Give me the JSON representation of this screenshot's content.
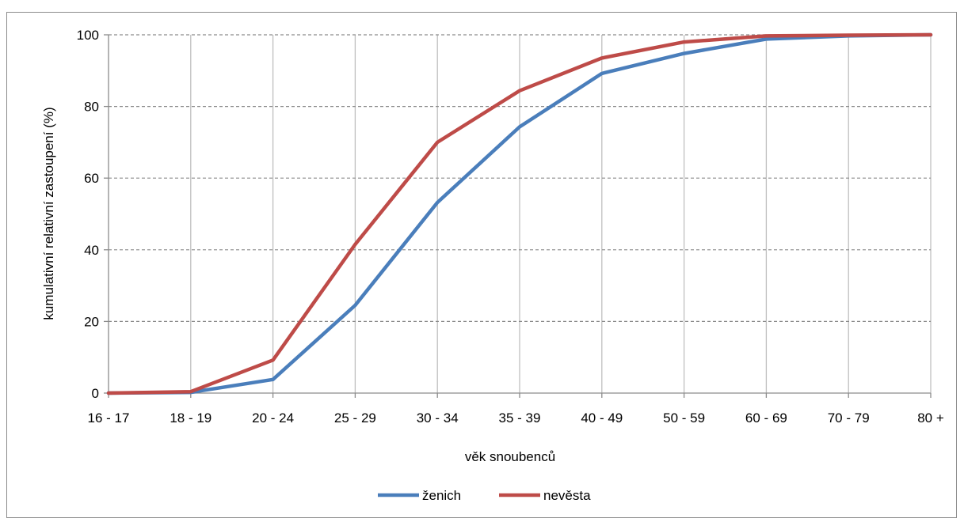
{
  "chart_data": {
    "type": "line",
    "categories": [
      "16 - 17",
      "18 - 19",
      "20 - 24",
      "25 - 29",
      "30 - 34",
      "35 - 39",
      "40 - 49",
      "50 - 59",
      "60 - 69",
      "70 - 79",
      "80 +"
    ],
    "series": [
      {
        "name": "ženich",
        "color": "#4a7ebb",
        "values": [
          0,
          0.2,
          3.8,
          24.5,
          53.2,
          74.3,
          89.2,
          94.8,
          98.8,
          99.7,
          100
        ]
      },
      {
        "name": "nevěsta",
        "color": "#be4b48",
        "values": [
          0,
          0.4,
          9.2,
          41.5,
          70.0,
          84.4,
          93.5,
          98.0,
          99.7,
          99.9,
          100
        ]
      }
    ],
    "title": "",
    "xlabel": "věk snoubenců",
    "ylabel": "kumulativní relativní zastoupení  (%)",
    "ylim": [
      0,
      100
    ],
    "yticks": [
      0,
      20,
      40,
      60,
      80,
      100
    ],
    "grid": true,
    "legend_position": "bottom"
  }
}
